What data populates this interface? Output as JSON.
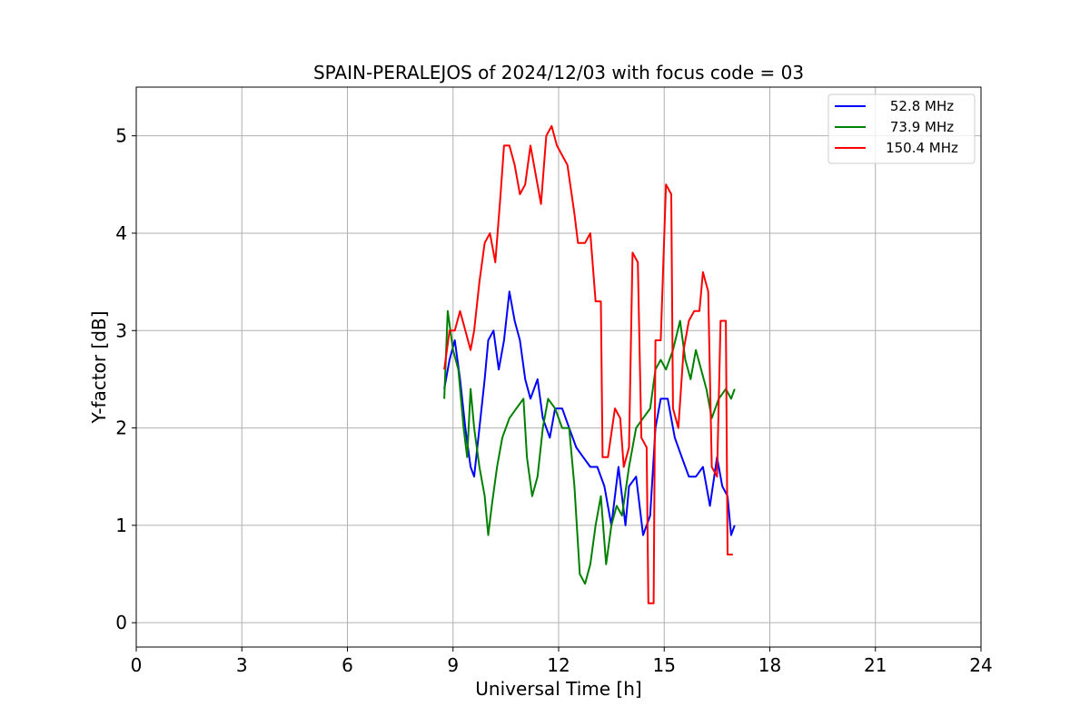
{
  "chart_data": {
    "type": "line",
    "title": "SPAIN-PERALEJOS of 2024/12/03 with focus code = 03",
    "xlabel": "Universal Time [h]",
    "ylabel": "Y-factor [dB]",
    "xlim": [
      0,
      24
    ],
    "ylim": [
      -0.25,
      5.5
    ],
    "xticks": [
      0,
      3,
      6,
      9,
      12,
      15,
      18,
      21,
      24
    ],
    "yticks": [
      0,
      1,
      2,
      3,
      4,
      5
    ],
    "grid": true,
    "legend_position": "top-right",
    "series": [
      {
        "name": "52.8 MHz",
        "color": "#0000ff",
        "points": [
          [
            8.75,
            2.4
          ],
          [
            8.9,
            2.7
          ],
          [
            9.05,
            2.9
          ],
          [
            9.2,
            2.5
          ],
          [
            9.35,
            2.0
          ],
          [
            9.5,
            1.6
          ],
          [
            9.6,
            1.5
          ],
          [
            9.75,
            2.0
          ],
          [
            9.9,
            2.5
          ],
          [
            10.0,
            2.9
          ],
          [
            10.15,
            3.0
          ],
          [
            10.3,
            2.6
          ],
          [
            10.45,
            2.9
          ],
          [
            10.6,
            3.4
          ],
          [
            10.75,
            3.1
          ],
          [
            10.9,
            2.9
          ],
          [
            11.05,
            2.5
          ],
          [
            11.2,
            2.3
          ],
          [
            11.4,
            2.5
          ],
          [
            11.55,
            2.1
          ],
          [
            11.75,
            1.9
          ],
          [
            11.9,
            2.2
          ],
          [
            12.1,
            2.2
          ],
          [
            12.3,
            2.0
          ],
          [
            12.5,
            1.8
          ],
          [
            12.7,
            1.7
          ],
          [
            12.9,
            1.6
          ],
          [
            13.1,
            1.6
          ],
          [
            13.3,
            1.4
          ],
          [
            13.5,
            1.0
          ],
          [
            13.7,
            1.6
          ],
          [
            13.9,
            1.0
          ],
          [
            14.0,
            1.4
          ],
          [
            14.2,
            1.5
          ],
          [
            14.4,
            0.9
          ],
          [
            14.6,
            1.1
          ],
          [
            14.75,
            2.0
          ],
          [
            14.9,
            2.3
          ],
          [
            15.1,
            2.3
          ],
          [
            15.3,
            1.9
          ],
          [
            15.5,
            1.7
          ],
          [
            15.7,
            1.5
          ],
          [
            15.9,
            1.5
          ],
          [
            16.1,
            1.6
          ],
          [
            16.3,
            1.2
          ],
          [
            16.5,
            1.7
          ],
          [
            16.65,
            1.4
          ],
          [
            16.8,
            1.3
          ],
          [
            16.9,
            0.9
          ],
          [
            17.0,
            1.0
          ]
        ]
      },
      {
        "name": "73.9 MHz",
        "color": "#008000",
        "points": [
          [
            8.75,
            2.3
          ],
          [
            8.85,
            3.2
          ],
          [
            9.0,
            2.8
          ],
          [
            9.15,
            2.6
          ],
          [
            9.3,
            2.0
          ],
          [
            9.4,
            1.7
          ],
          [
            9.5,
            2.4
          ],
          [
            9.6,
            2.0
          ],
          [
            9.75,
            1.6
          ],
          [
            9.9,
            1.3
          ],
          [
            10.0,
            0.9
          ],
          [
            10.1,
            1.2
          ],
          [
            10.25,
            1.6
          ],
          [
            10.4,
            1.9
          ],
          [
            10.6,
            2.1
          ],
          [
            10.8,
            2.2
          ],
          [
            11.0,
            2.3
          ],
          [
            11.1,
            1.7
          ],
          [
            11.25,
            1.3
          ],
          [
            11.4,
            1.5
          ],
          [
            11.55,
            2.0
          ],
          [
            11.7,
            2.3
          ],
          [
            11.9,
            2.2
          ],
          [
            12.1,
            2.0
          ],
          [
            12.3,
            2.0
          ],
          [
            12.45,
            1.4
          ],
          [
            12.6,
            0.5
          ],
          [
            12.75,
            0.4
          ],
          [
            12.9,
            0.6
          ],
          [
            13.05,
            1.0
          ],
          [
            13.2,
            1.3
          ],
          [
            13.35,
            0.6
          ],
          [
            13.5,
            1.0
          ],
          [
            13.65,
            1.2
          ],
          [
            13.8,
            1.1
          ],
          [
            14.0,
            1.6
          ],
          [
            14.2,
            2.0
          ],
          [
            14.4,
            2.1
          ],
          [
            14.6,
            2.2
          ],
          [
            14.75,
            2.6
          ],
          [
            14.9,
            2.7
          ],
          [
            15.05,
            2.6
          ],
          [
            15.25,
            2.8
          ],
          [
            15.45,
            3.1
          ],
          [
            15.6,
            2.7
          ],
          [
            15.75,
            2.5
          ],
          [
            15.9,
            2.8
          ],
          [
            16.05,
            2.6
          ],
          [
            16.2,
            2.4
          ],
          [
            16.35,
            2.1
          ],
          [
            16.55,
            2.3
          ],
          [
            16.75,
            2.4
          ],
          [
            16.9,
            2.3
          ],
          [
            17.0,
            2.4
          ]
        ]
      },
      {
        "name": "150.4 MHz",
        "color": "#ff0000",
        "points": [
          [
            8.75,
            2.6
          ],
          [
            8.9,
            3.0
          ],
          [
            9.05,
            3.0
          ],
          [
            9.2,
            3.2
          ],
          [
            9.35,
            3.0
          ],
          [
            9.5,
            2.8
          ],
          [
            9.6,
            3.0
          ],
          [
            9.75,
            3.5
          ],
          [
            9.9,
            3.9
          ],
          [
            10.05,
            4.0
          ],
          [
            10.2,
            3.7
          ],
          [
            10.35,
            4.4
          ],
          [
            10.45,
            4.9
          ],
          [
            10.6,
            4.9
          ],
          [
            10.75,
            4.7
          ],
          [
            10.9,
            4.4
          ],
          [
            11.05,
            4.5
          ],
          [
            11.2,
            4.9
          ],
          [
            11.35,
            4.6
          ],
          [
            11.5,
            4.3
          ],
          [
            11.65,
            5.0
          ],
          [
            11.8,
            5.1
          ],
          [
            11.95,
            4.9
          ],
          [
            12.1,
            4.8
          ],
          [
            12.25,
            4.7
          ],
          [
            12.45,
            4.2
          ],
          [
            12.55,
            3.9
          ],
          [
            12.75,
            3.9
          ],
          [
            12.9,
            4.0
          ],
          [
            13.05,
            3.3
          ],
          [
            13.2,
            3.3
          ],
          [
            13.25,
            1.7
          ],
          [
            13.4,
            1.7
          ],
          [
            13.6,
            2.2
          ],
          [
            13.75,
            2.1
          ],
          [
            13.85,
            1.6
          ],
          [
            14.0,
            1.8
          ],
          [
            14.1,
            3.8
          ],
          [
            14.25,
            3.7
          ],
          [
            14.35,
            1.9
          ],
          [
            14.5,
            1.8
          ],
          [
            14.55,
            0.2
          ],
          [
            14.7,
            0.2
          ],
          [
            14.75,
            2.9
          ],
          [
            14.9,
            2.9
          ],
          [
            15.05,
            4.5
          ],
          [
            15.2,
            4.4
          ],
          [
            15.25,
            2.2
          ],
          [
            15.4,
            2.0
          ],
          [
            15.55,
            2.8
          ],
          [
            15.7,
            3.1
          ],
          [
            15.85,
            3.2
          ],
          [
            16.0,
            3.2
          ],
          [
            16.1,
            3.6
          ],
          [
            16.25,
            3.4
          ],
          [
            16.35,
            1.6
          ],
          [
            16.5,
            1.5
          ],
          [
            16.6,
            3.1
          ],
          [
            16.75,
            3.1
          ],
          [
            16.8,
            0.7
          ],
          [
            16.95,
            0.7
          ]
        ]
      }
    ]
  }
}
